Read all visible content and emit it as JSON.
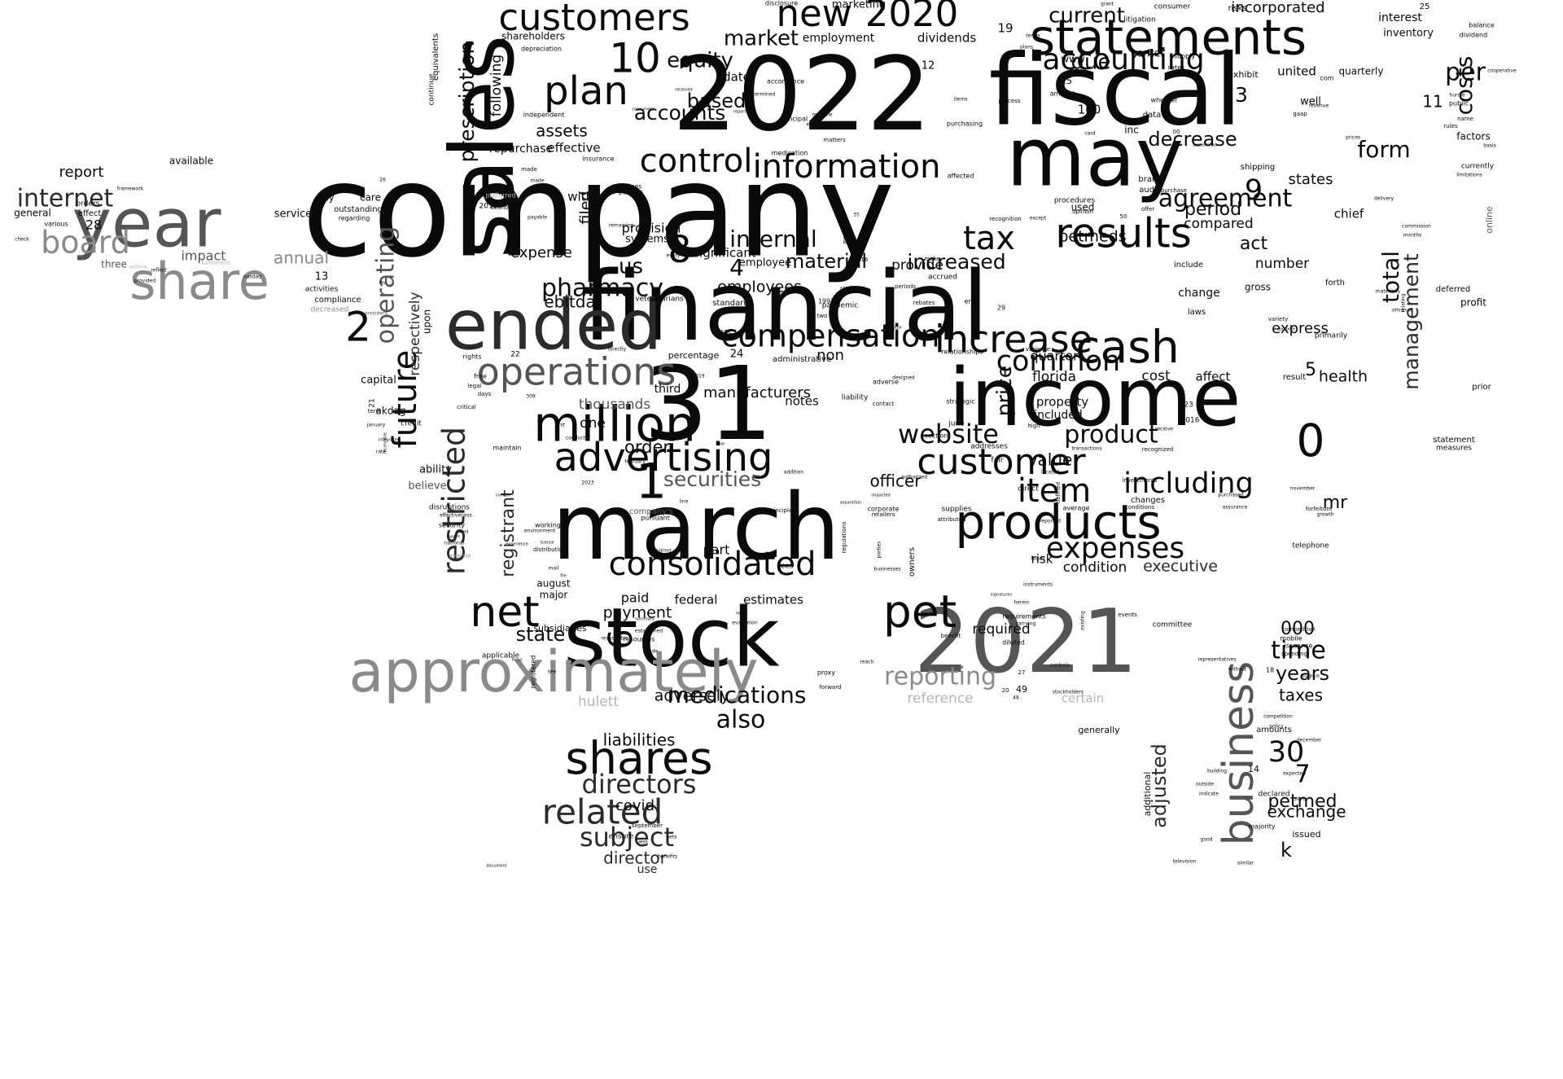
{
  "image": {
    "type": "word-cloud"
  },
  "colors": {
    "background": "#ffffff",
    "darkest": "#0a0a0a",
    "dark": "#2b2b2b",
    "mid": "#555555",
    "gray": "#8a8a8a",
    "light": "#b5b5b5"
  },
  "words": [
    {
      "text": "company"
    },
    {
      "text": "2022"
    },
    {
      "text": "fiscal"
    },
    {
      "text": "financial"
    },
    {
      "text": "sales"
    },
    {
      "text": "may"
    },
    {
      "text": "31"
    },
    {
      "text": "income"
    },
    {
      "text": "march"
    },
    {
      "text": "2021"
    },
    {
      "text": "stock"
    },
    {
      "text": "ended"
    },
    {
      "text": "approximately"
    },
    {
      "text": "statements"
    },
    {
      "text": "year"
    },
    {
      "text": "million"
    },
    {
      "text": "products"
    },
    {
      "text": "share"
    },
    {
      "text": "customers"
    },
    {
      "text": "advertising"
    },
    {
      "text": "operations"
    },
    {
      "text": "information"
    },
    {
      "text": "business"
    },
    {
      "text": "cash"
    },
    {
      "text": "net"
    },
    {
      "text": "pet"
    },
    {
      "text": "shares"
    },
    {
      "text": "results"
    },
    {
      "text": "increase"
    },
    {
      "text": "customer"
    },
    {
      "text": "consolidated"
    },
    {
      "text": "control"
    },
    {
      "text": "plan"
    },
    {
      "text": "new"
    },
    {
      "text": "2020"
    },
    {
      "text": "restricted"
    },
    {
      "text": "related"
    },
    {
      "text": "compensation"
    },
    {
      "text": "future"
    },
    {
      "text": "board"
    },
    {
      "text": "accounting"
    },
    {
      "text": "expenses"
    },
    {
      "text": "item"
    },
    {
      "text": "including"
    },
    {
      "text": "0"
    },
    {
      "text": "1"
    },
    {
      "text": "10"
    },
    {
      "text": "8"
    },
    {
      "text": "common"
    },
    {
      "text": "tax"
    },
    {
      "text": "directors"
    },
    {
      "text": "subject"
    },
    {
      "text": "website"
    },
    {
      "text": "product"
    },
    {
      "text": "pharmacy"
    },
    {
      "text": "agreement"
    },
    {
      "text": "internet"
    },
    {
      "text": "operating"
    },
    {
      "text": "form"
    },
    {
      "text": "medications"
    },
    {
      "text": "also"
    },
    {
      "text": "time"
    },
    {
      "text": "reporting"
    },
    {
      "text": "costs"
    },
    {
      "text": "per"
    },
    {
      "text": "internal"
    },
    {
      "text": "total"
    },
    {
      "text": "equity"
    },
    {
      "text": "market"
    },
    {
      "text": "prescription"
    },
    {
      "text": "current"
    },
    {
      "text": "due"
    },
    {
      "text": "decrease"
    },
    {
      "text": "accounts"
    },
    {
      "text": "based"
    },
    {
      "text": "management"
    },
    {
      "text": "securities"
    },
    {
      "text": "registrant"
    },
    {
      "text": "price"
    },
    {
      "text": "increased"
    },
    {
      "text": "material"
    },
    {
      "text": "30"
    },
    {
      "text": "adjusted"
    },
    {
      "text": "petmed"
    },
    {
      "text": "exchange"
    },
    {
      "text": "2"
    },
    {
      "text": "6"
    },
    {
      "text": "9"
    },
    {
      "text": "7"
    },
    {
      "text": "3"
    },
    {
      "text": "4"
    },
    {
      "text": "5"
    },
    {
      "text": "k"
    },
    {
      "text": "mr"
    },
    {
      "text": "years"
    },
    {
      "text": "taxes"
    },
    {
      "text": "000"
    },
    {
      "text": "state"
    },
    {
      "text": "payment"
    },
    {
      "text": "paid"
    },
    {
      "text": "federal"
    },
    {
      "text": "estimates"
    },
    {
      "text": "adversely"
    },
    {
      "text": "liabilities"
    },
    {
      "text": "covid"
    },
    {
      "text": "director"
    },
    {
      "text": "use"
    },
    {
      "text": "hulett"
    },
    {
      "text": "certain"
    },
    {
      "text": "reference"
    },
    {
      "text": "required"
    },
    {
      "text": "executive"
    },
    {
      "text": "condition"
    },
    {
      "text": "risk"
    },
    {
      "text": "part"
    },
    {
      "text": "officer"
    },
    {
      "text": "value"
    },
    {
      "text": "manufacturers"
    },
    {
      "text": "notes"
    },
    {
      "text": "third"
    },
    {
      "text": "thousands"
    },
    {
      "text": "one"
    },
    {
      "text": "order"
    },
    {
      "text": "ebitda"
    },
    {
      "text": "employees"
    },
    {
      "text": "us"
    },
    {
      "text": "expense"
    },
    {
      "text": "provision"
    },
    {
      "text": "systems"
    },
    {
      "text": "significant"
    },
    {
      "text": "employee"
    },
    {
      "text": "act"
    },
    {
      "text": "period"
    },
    {
      "text": "compared"
    },
    {
      "text": "petmeds"
    },
    {
      "text": "provide"
    },
    {
      "text": "number"
    },
    {
      "text": "states"
    },
    {
      "text": "chief"
    },
    {
      "text": "express"
    },
    {
      "text": "quarter"
    },
    {
      "text": "florida"
    },
    {
      "text": "property"
    },
    {
      "text": "included"
    },
    {
      "text": "cost"
    },
    {
      "text": "affect"
    },
    {
      "text": "health"
    },
    {
      "text": "non"
    },
    {
      "text": "assets"
    },
    {
      "text": "effective"
    },
    {
      "text": "within"
    },
    {
      "text": "repurchase"
    },
    {
      "text": "filed"
    },
    {
      "text": "following"
    },
    {
      "text": "date"
    },
    {
      "text": "employment"
    },
    {
      "text": "dividends"
    },
    {
      "text": "19"
    },
    {
      "text": "incorporated"
    },
    {
      "text": "interest"
    },
    {
      "text": "inventory"
    },
    {
      "text": "united"
    },
    {
      "text": "quarterly"
    },
    {
      "text": "exhibit"
    },
    {
      "text": "marketing"
    },
    {
      "text": "shareholders"
    },
    {
      "text": "report"
    },
    {
      "text": "available"
    },
    {
      "text": "28"
    },
    {
      "text": "general"
    },
    {
      "text": "effect"
    },
    {
      "text": "orders"
    },
    {
      "text": "various"
    },
    {
      "text": "impact"
    },
    {
      "text": "annual"
    },
    {
      "text": "three"
    },
    {
      "text": "service"
    },
    {
      "text": "july"
    },
    {
      "text": "care"
    },
    {
      "text": "outstanding"
    },
    {
      "text": "regarding"
    },
    {
      "text": "13"
    },
    {
      "text": "activities"
    },
    {
      "text": "compliance"
    },
    {
      "text": "decreased"
    },
    {
      "text": "respectively"
    },
    {
      "text": "upon"
    },
    {
      "text": "capital"
    },
    {
      "text": "akdag"
    },
    {
      "text": "ability"
    },
    {
      "text": "believe"
    },
    {
      "text": "credit"
    },
    {
      "text": "disruptions"
    },
    {
      "text": "security"
    },
    {
      "text": "national"
    },
    {
      "text": "potential"
    },
    {
      "text": "august"
    },
    {
      "text": "major"
    },
    {
      "text": "working"
    },
    {
      "text": "subsidiaries"
    },
    {
      "text": "www"
    },
    {
      "text": "center"
    },
    {
      "text": "100"
    },
    {
      "text": "inc"
    },
    {
      "text": "data"
    },
    {
      "text": "used"
    },
    {
      "text": "online"
    },
    {
      "text": "factors"
    },
    {
      "text": "currently"
    },
    {
      "text": "deferred"
    },
    {
      "text": "profit"
    },
    {
      "text": "prior"
    },
    {
      "text": "statement"
    },
    {
      "text": "measures"
    },
    {
      "text": "telephone"
    },
    {
      "text": "change"
    },
    {
      "text": "gross"
    },
    {
      "text": "forth"
    },
    {
      "text": "laws"
    },
    {
      "text": "include"
    },
    {
      "text": "standards"
    },
    {
      "text": "administrative"
    },
    {
      "text": "percentage"
    },
    {
      "text": "pandemic"
    },
    {
      "text": "veterinarians"
    },
    {
      "text": "accrued"
    },
    {
      "text": "relationships"
    },
    {
      "text": "june"
    },
    {
      "text": "generally"
    },
    {
      "text": "amounts"
    },
    {
      "text": "issued"
    },
    {
      "text": "additional"
    },
    {
      "text": "company's"
    },
    {
      "text": "pursuant"
    },
    {
      "text": "accordance"
    },
    {
      "text": "risks"
    },
    {
      "text": "25"
    },
    {
      "text": "11"
    },
    {
      "text": "continue"
    },
    {
      "text": "equivalents"
    },
    {
      "text": "24"
    },
    {
      "text": "liability"
    },
    {
      "text": "well"
    },
    {
      "text": "12"
    },
    {
      "text": "15"
    },
    {
      "text": "amount"
    },
    {
      "text": "purchasing"
    },
    {
      "text": "process"
    },
    {
      "text": "principal"
    },
    {
      "text": "fees"
    },
    {
      "text": "supplies"
    },
    {
      "text": "owners"
    },
    {
      "text": "rights"
    },
    {
      "text": "free"
    },
    {
      "text": "legal"
    },
    {
      "text": "days"
    },
    {
      "text": "critical"
    },
    {
      "text": "term"
    },
    {
      "text": "direct"
    },
    {
      "text": "fair"
    },
    {
      "text": "addresses"
    },
    {
      "text": "section"
    },
    {
      "text": "changes"
    },
    {
      "text": "average"
    },
    {
      "text": "maintain"
    },
    {
      "text": "mobile"
    },
    {
      "text": "issuance"
    },
    {
      "text": "spending"
    },
    {
      "text": "competitive"
    },
    {
      "text": "committee"
    },
    {
      "text": "events"
    },
    {
      "text": "requirements"
    },
    {
      "text": "carrying"
    },
    {
      "text": "diluted"
    },
    {
      "text": "benefit"
    },
    {
      "text": "49"
    },
    {
      "text": "14"
    },
    {
      "text": "declared"
    },
    {
      "text": "majority"
    },
    {
      "text": "services"
    },
    {
      "text": "policies"
    },
    {
      "text": "preferred"
    },
    {
      "text": "2015"
    },
    {
      "text": "depreciation"
    },
    {
      "text": "independent"
    },
    {
      "text": "insurance"
    },
    {
      "text": "purchase"
    },
    {
      "text": "brand"
    },
    {
      "text": "audit"
    },
    {
      "text": "shipping"
    },
    {
      "text": "delivery"
    },
    {
      "text": "distribution"
    },
    {
      "text": "environment"
    },
    {
      "text": "registered"
    },
    {
      "text": "applicable"
    },
    {
      "text": "resources"
    },
    {
      "text": "ensure"
    },
    {
      "text": "september"
    },
    {
      "text": "proxy"
    },
    {
      "text": "rebates"
    },
    {
      "text": "procedures"
    },
    {
      "text": "opinion"
    },
    {
      "text": "adverse"
    },
    {
      "text": "consumer"
    },
    {
      "text": "litigation"
    },
    {
      "text": "supply"
    },
    {
      "text": "rates"
    },
    {
      "text": "com"
    },
    {
      "text": "public"
    },
    {
      "text": "rules"
    },
    {
      "text": "balance"
    },
    {
      "text": "dividend"
    },
    {
      "text": "whether"
    },
    {
      "text": "gaap"
    },
    {
      "text": "primarily"
    },
    {
      "text": "variance"
    },
    {
      "text": "contact"
    },
    {
      "text": "strategic"
    },
    {
      "text": "2016"
    },
    {
      "text": "1997"
    },
    {
      "text": "23"
    },
    {
      "text": "29"
    },
    {
      "text": "end"
    },
    {
      "text": "result"
    },
    {
      "text": "corporate"
    },
    {
      "text": "retailers"
    },
    {
      "text": "principles"
    },
    {
      "text": "regulations"
    },
    {
      "text": "attributed"
    },
    {
      "text": "conditions"
    },
    {
      "text": "reported"
    },
    {
      "text": "investments"
    },
    {
      "text": "recognized"
    },
    {
      "text": "defined"
    },
    {
      "text": "located"
    },
    {
      "text": "high"
    },
    {
      "text": "transactions"
    },
    {
      "text": "receive"
    },
    {
      "text": "forfeiture"
    },
    {
      "text": "november"
    },
    {
      "text": "assurance"
    },
    {
      "text": "purchased"
    },
    {
      "text": "growth"
    },
    {
      "text": "commission"
    },
    {
      "text": "months"
    },
    {
      "text": "limitations"
    },
    {
      "text": "cooperative"
    },
    {
      "text": "name"
    },
    {
      "text": "basis"
    },
    {
      "text": "made"
    },
    {
      "text": "economic"
    },
    {
      "text": "payable"
    },
    {
      "text": "first"
    },
    {
      "text": "february"
    },
    {
      "text": "2023"
    },
    {
      "text": "contain"
    },
    {
      "text": "weighted"
    },
    {
      "text": "directly"
    },
    {
      "text": "sec"
    },
    {
      "text": "remaining"
    },
    {
      "text": "every"
    },
    {
      "text": "continued"
    },
    {
      "text": "global"
    },
    {
      "text": "two"
    },
    {
      "text": "made"
    },
    {
      "text": "authorized"
    },
    {
      "text": "impacted"
    },
    {
      "text": "reasonable"
    },
    {
      "text": "trade"
    },
    {
      "text": "work"
    },
    {
      "text": "need"
    },
    {
      "text": "evaluation"
    },
    {
      "text": "established"
    },
    {
      "text": "less"
    },
    {
      "text": "pets"
    },
    {
      "text": "benefits"
    },
    {
      "text": "document"
    },
    {
      "text": "flows"
    },
    {
      "text": "see"
    },
    {
      "text": "forward"
    },
    {
      "text": "controls"
    },
    {
      "text": "stockholders"
    },
    {
      "text": "building"
    },
    {
      "text": "outside"
    },
    {
      "text": "indicate"
    },
    {
      "text": "party"
    },
    {
      "text": "expected"
    },
    {
      "text": "good"
    },
    {
      "text": "television"
    },
    {
      "text": "similar"
    },
    {
      "text": "competition"
    },
    {
      "text": "policy"
    },
    {
      "text": "december"
    },
    {
      "text": "representatives"
    },
    {
      "text": "without"
    },
    {
      "text": "surplus"
    },
    {
      "text": "medication"
    },
    {
      "text": "matters"
    },
    {
      "text": "affected"
    },
    {
      "text": "recognition"
    },
    {
      "text": "except"
    },
    {
      "text": "offer"
    },
    {
      "text": "variety"
    },
    {
      "text": "compete"
    },
    {
      "text": "card"
    },
    {
      "text": "reorder"
    },
    {
      "text": "mathew"
    },
    {
      "text": "expensed"
    },
    {
      "text": "items"
    },
    {
      "text": "terms"
    },
    {
      "text": "plans"
    },
    {
      "text": "disclosure"
    },
    {
      "text": "grant"
    },
    {
      "text": "received"
    },
    {
      "text": "reports"
    },
    {
      "text": "determined"
    },
    {
      "text": "hurdle"
    },
    {
      "text": "revenue"
    },
    {
      "text": "accelerated"
    },
    {
      "text": "00"
    },
    {
      "text": "framework"
    },
    {
      "text": "actions"
    },
    {
      "text": "fulfillment"
    },
    {
      "text": "nasdaq"
    },
    {
      "text": "provided"
    },
    {
      "text": "reflect"
    },
    {
      "text": "key"
    },
    {
      "text": "check"
    },
    {
      "text": "president"
    },
    {
      "text": "january"
    },
    {
      "text": "integrated"
    },
    {
      "text": "receivable"
    },
    {
      "text": "rate"
    },
    {
      "text": "effectiveness"
    },
    {
      "text": "held"
    },
    {
      "text": "support"
    },
    {
      "text": "experience"
    },
    {
      "text": "license"
    },
    {
      "text": "mail"
    },
    {
      "text": "file"
    },
    {
      "text": "22"
    },
    {
      "text": "309"
    },
    {
      "text": "2019"
    },
    {
      "text": "conduct"
    },
    {
      "text": "line"
    },
    {
      "text": "sale"
    },
    {
      "text": "addition"
    },
    {
      "text": "separation"
    },
    {
      "text": "parties"
    },
    {
      "text": "businesses"
    },
    {
      "text": "instruments"
    },
    {
      "text": "funds"
    },
    {
      "text": "herein"
    },
    {
      "text": "existing"
    },
    {
      "text": "reach"
    },
    {
      "text": "summary"
    },
    {
      "text": "signatures"
    },
    {
      "text": "consumers"
    },
    {
      "text": "prices"
    },
    {
      "text": "materially"
    },
    {
      "text": "relating"
    },
    {
      "text": "difference"
    },
    {
      "text": "meeting"
    },
    {
      "text": "16"
    },
    {
      "text": "periods"
    },
    {
      "text": "make"
    },
    {
      "text": "designed"
    },
    {
      "text": "27"
    },
    {
      "text": "20"
    },
    {
      "text": "48"
    },
    {
      "text": "18"
    },
    {
      "text": "26"
    },
    {
      "text": "21"
    },
    {
      "text": "35"
    },
    {
      "text": "50"
    }
  ]
}
